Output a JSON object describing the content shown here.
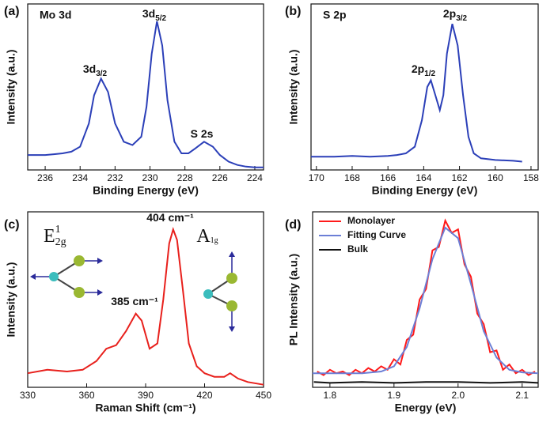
{
  "chart_data": [
    {
      "type": "line",
      "panel": "(a)",
      "title": "Mo 3d",
      "x_label": "Binding Energy (eV)",
      "y_label": "Intensity (a.u.)",
      "color": "#2b3fb8",
      "xlim": [
        237,
        223.5
      ],
      "xticks": [
        236,
        234,
        232,
        230,
        228,
        226,
        224
      ],
      "ylim": [
        0,
        1
      ],
      "x": [
        237,
        236.5,
        236,
        235.5,
        235,
        234.5,
        234,
        233.5,
        233.2,
        232.8,
        232.4,
        232,
        231.5,
        231,
        230.5,
        230.2,
        229.9,
        229.6,
        229.3,
        229,
        228.6,
        228.2,
        227.8,
        227.4,
        226.9,
        226.4,
        226,
        225.5,
        225,
        224.5,
        224,
        223.5
      ],
      "values": [
        0.09,
        0.09,
        0.09,
        0.095,
        0.1,
        0.11,
        0.14,
        0.28,
        0.45,
        0.55,
        0.47,
        0.28,
        0.17,
        0.15,
        0.2,
        0.38,
        0.7,
        0.895,
        0.75,
        0.42,
        0.17,
        0.1,
        0.1,
        0.13,
        0.17,
        0.14,
        0.09,
        0.05,
        0.03,
        0.02,
        0.015,
        0.015
      ],
      "annotations": [
        {
          "text": "3d",
          "sub": "3/2"
        },
        {
          "text": "3d",
          "sub": "5/2"
        },
        {
          "text": "S 2s"
        }
      ]
    },
    {
      "type": "line",
      "panel": "(b)",
      "title": "S 2p",
      "x_label": "Binding Energy (eV)",
      "y_label": "Intensity (a.u.)",
      "color": "#2b3fb8",
      "xlim": [
        170.3,
        157.6
      ],
      "xticks": [
        170,
        168,
        166,
        164,
        162,
        160,
        158
      ],
      "ylim": [
        0,
        1
      ],
      "x": [
        170.3,
        169,
        168,
        167,
        166,
        165.5,
        165,
        164.5,
        164.1,
        163.8,
        163.6,
        163.35,
        163.1,
        162.9,
        162.7,
        162.4,
        162.1,
        161.8,
        161.5,
        161.2,
        160.8,
        160,
        159,
        158.5
      ],
      "values": [
        0.08,
        0.08,
        0.085,
        0.08,
        0.085,
        0.09,
        0.1,
        0.14,
        0.3,
        0.5,
        0.54,
        0.45,
        0.36,
        0.45,
        0.7,
        0.88,
        0.75,
        0.45,
        0.2,
        0.1,
        0.07,
        0.06,
        0.055,
        0.05
      ],
      "annotations": [
        {
          "text": "2p",
          "sub": "1/2"
        },
        {
          "text": "2p",
          "sub": "3/2"
        }
      ]
    },
    {
      "type": "line",
      "panel": "(c)",
      "x_label": "Raman Shift (cm⁻¹)",
      "y_label": "Intensity (a.u.)",
      "color": "#e8201c",
      "xlim": [
        330,
        450
      ],
      "xticks": [
        330,
        360,
        390,
        420,
        450
      ],
      "ylim": [
        0,
        1
      ],
      "x": [
        330,
        340,
        350,
        358,
        365,
        370,
        375,
        380,
        385,
        388,
        392,
        396,
        399,
        402,
        404,
        406,
        409,
        412,
        416,
        420,
        425,
        430,
        433,
        437,
        442,
        450
      ],
      "values": [
        0.08,
        0.1,
        0.09,
        0.1,
        0.15,
        0.22,
        0.24,
        0.32,
        0.42,
        0.38,
        0.22,
        0.25,
        0.5,
        0.82,
        0.9,
        0.84,
        0.55,
        0.25,
        0.12,
        0.08,
        0.06,
        0.06,
        0.08,
        0.05,
        0.03,
        0.015
      ],
      "annotations": [
        {
          "text": "404 cm⁻¹"
        },
        {
          "text": "385 cm⁻¹"
        },
        {
          "text": "E",
          "sup": "1",
          "sub": "2g"
        },
        {
          "text": "A",
          "sub": "1g"
        }
      ]
    },
    {
      "type": "line",
      "panel": "(d)",
      "x_label": "Energy (eV)",
      "y_label": "PL Intensity (a.u.)",
      "xlim": [
        1.773,
        2.125
      ],
      "xticks": [
        1.8,
        1.9,
        {
          "value": 2,
          "label": "2.0"
        },
        2.1
      ],
      "ylim": [
        0,
        1
      ],
      "legend": "top-left",
      "series": [
        {
          "name": "Monolayer",
          "color": "#ff1a1a",
          "x": [
            1.78,
            1.79,
            1.8,
            1.81,
            1.82,
            1.83,
            1.84,
            1.85,
            1.86,
            1.87,
            1.88,
            1.89,
            1.9,
            1.91,
            1.92,
            1.93,
            1.94,
            1.95,
            1.96,
            1.97,
            1.98,
            1.99,
            2.0,
            2.01,
            2.02,
            2.03,
            2.04,
            2.05,
            2.06,
            2.07,
            2.08,
            2.09,
            2.1,
            2.11,
            2.12
          ],
          "values": [
            0.09,
            0.07,
            0.1,
            0.08,
            0.09,
            0.07,
            0.1,
            0.08,
            0.11,
            0.09,
            0.12,
            0.1,
            0.16,
            0.13,
            0.27,
            0.3,
            0.5,
            0.56,
            0.78,
            0.8,
            0.95,
            0.88,
            0.9,
            0.7,
            0.63,
            0.42,
            0.36,
            0.2,
            0.21,
            0.1,
            0.13,
            0.08,
            0.1,
            0.07,
            0.09
          ]
        },
        {
          "name": "Fitting Curve",
          "color": "#6c7fd6",
          "x": [
            1.773,
            1.8,
            1.85,
            1.88,
            1.9,
            1.92,
            1.94,
            1.96,
            1.98,
            2.0,
            2.02,
            2.04,
            2.06,
            2.08,
            2.1,
            2.125
          ],
          "values": [
            0.08,
            0.08,
            0.08,
            0.09,
            0.12,
            0.23,
            0.45,
            0.73,
            0.91,
            0.85,
            0.59,
            0.32,
            0.17,
            0.1,
            0.085,
            0.08
          ]
        },
        {
          "name": "Bulk",
          "color": "#111111",
          "x": [
            1.775,
            1.8,
            1.85,
            1.9,
            1.95,
            2.0,
            2.05,
            2.1,
            2.125
          ],
          "values": [
            0.03,
            0.025,
            0.03,
            0.025,
            0.03,
            0.03,
            0.025,
            0.03,
            0.025
          ]
        }
      ]
    }
  ]
}
